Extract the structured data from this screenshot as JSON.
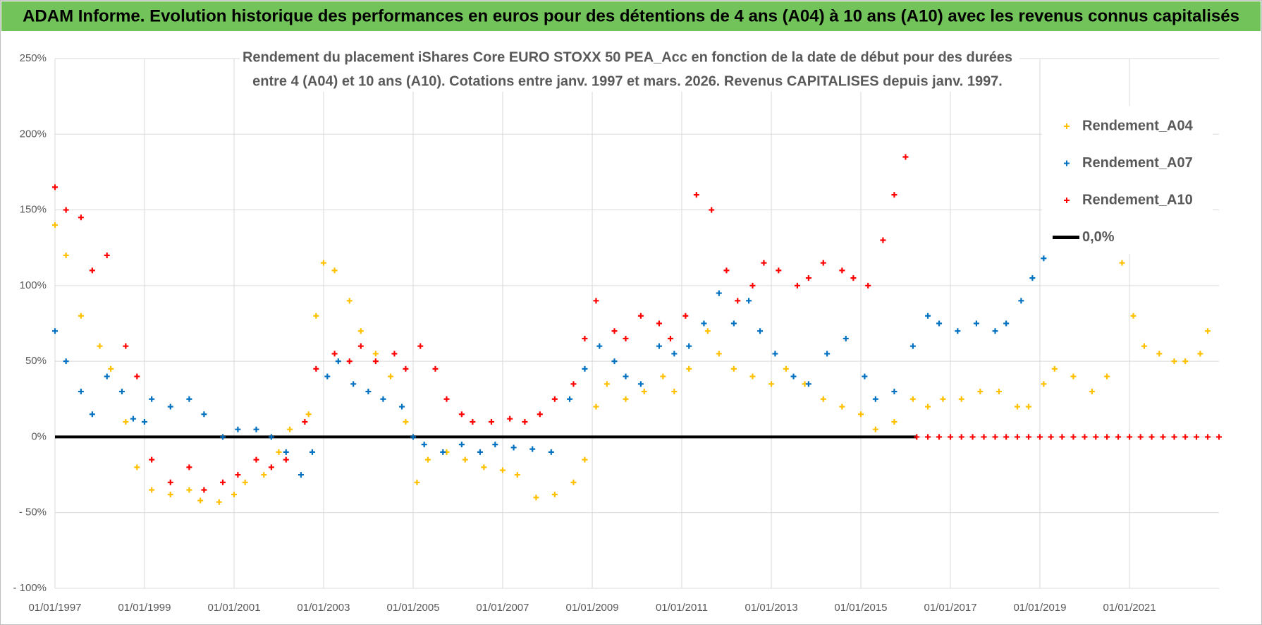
{
  "chart_data": {
    "type": "scatter",
    "header": "ADAM Informe. Evolution historique des performances en euros pour des détentions de 4 ans (A04) à 10 ans (A10) avec les revenus connus capitalisés",
    "title": [
      "Rendement du placement iShares Core EURO STOXX 50 PEA_Acc en fonction de la date de début pour des durées",
      "entre 4 (A04) et 10 ans (A10). Cotations entre janv. 1997 et mars. 2026. Revenus CAPITALISES depuis janv. 1997."
    ],
    "xlim": [
      "1997-01-01",
      "2023-01-01"
    ],
    "xticks": [
      {
        "value": "1997-01-01",
        "label": "01/01/1997"
      },
      {
        "value": "1999-01-01",
        "label": "01/01/1999"
      },
      {
        "value": "2001-01-01",
        "label": "01/01/2001"
      },
      {
        "value": "2003-01-01",
        "label": "01/01/2003"
      },
      {
        "value": "2005-01-01",
        "label": "01/01/2005"
      },
      {
        "value": "2007-01-01",
        "label": "01/01/2007"
      },
      {
        "value": "2009-01-01",
        "label": "01/01/2009"
      },
      {
        "value": "2011-01-01",
        "label": "01/01/2011"
      },
      {
        "value": "2013-01-01",
        "label": "01/01/2013"
      },
      {
        "value": "2015-01-01",
        "label": "01/01/2015"
      },
      {
        "value": "2017-01-01",
        "label": "01/01/2017"
      },
      {
        "value": "2019-01-01",
        "label": "01/01/2019"
      },
      {
        "value": "2021-01-01",
        "label": "01/01/2021"
      }
    ],
    "ylim": [
      -100,
      250
    ],
    "yticks": [
      {
        "value": -100,
        "label": "- 100%"
      },
      {
        "value": -50,
        "label": "- 50%"
      },
      {
        "value": 0,
        "label": "0%"
      },
      {
        "value": 50,
        "label": "50%"
      },
      {
        "value": 100,
        "label": "100%"
      },
      {
        "value": 150,
        "label": "150%"
      },
      {
        "value": 200,
        "label": "200%"
      },
      {
        "value": 250,
        "label": "250%"
      }
    ],
    "grid": true,
    "legend": "right",
    "series": [
      {
        "name": "0,0%",
        "color": "#000000",
        "type": "line",
        "x": [
          "1997-01-01",
          "2016-04-01"
        ],
        "values": [
          0,
          0
        ]
      },
      {
        "name": "Rendement_A04",
        "color": "#ffc000",
        "x": [
          "1997-01-01",
          "1997-04-01",
          "1997-08-01",
          "1998-01-01",
          "1998-04-01",
          "1998-08-01",
          "1998-11-01",
          "1999-03-01",
          "1999-08-01",
          "2000-01-01",
          "2000-04-01",
          "2000-09-01",
          "2001-01-01",
          "2001-04-01",
          "2001-09-01",
          "2002-01-01",
          "2002-04-01",
          "2002-09-01",
          "2002-11-01",
          "2003-01-01",
          "2003-04-01",
          "2003-08-01",
          "2003-11-01",
          "2004-03-01",
          "2004-07-01",
          "2004-11-01",
          "2005-02-01",
          "2005-05-01",
          "2005-10-01",
          "2006-03-01",
          "2006-08-01",
          "2007-01-01",
          "2007-05-01",
          "2007-10-01",
          "2008-03-01",
          "2008-08-01",
          "2008-11-01",
          "2009-02-01",
          "2009-05-01",
          "2009-10-01",
          "2010-03-01",
          "2010-08-01",
          "2010-11-01",
          "2011-03-01",
          "2011-08-01",
          "2011-11-01",
          "2012-03-01",
          "2012-08-01",
          "2013-01-01",
          "2013-05-01",
          "2013-10-01",
          "2014-03-01",
          "2014-08-01",
          "2015-01-01",
          "2015-05-01",
          "2015-10-01",
          "2016-03-01",
          "2016-07-01",
          "2016-11-01",
          "2017-04-01",
          "2017-09-01",
          "2018-02-01",
          "2018-07-01",
          "2018-10-01",
          "2019-02-01",
          "2019-05-01",
          "2019-10-01",
          "2020-03-01",
          "2020-07-01",
          "2020-11-01",
          "2021-02-01",
          "2021-05-01",
          "2021-09-01",
          "2022-01-01",
          "2022-04-01",
          "2022-08-01",
          "2022-10-01"
        ],
        "values": [
          140,
          120,
          80,
          60,
          45,
          10,
          -20,
          -35,
          -38,
          -35,
          -42,
          -43,
          -38,
          -30,
          -25,
          -10,
          5,
          15,
          80,
          115,
          110,
          90,
          70,
          55,
          40,
          10,
          -30,
          -15,
          -10,
          -15,
          -20,
          -22,
          -25,
          -40,
          -38,
          -30,
          -15,
          20,
          35,
          25,
          30,
          40,
          30,
          45,
          70,
          55,
          45,
          40,
          35,
          45,
          35,
          25,
          20,
          15,
          5,
          10,
          25,
          20,
          25,
          25,
          30,
          30,
          20,
          20,
          35,
          45,
          40,
          30,
          40,
          115,
          80,
          60,
          55,
          50,
          50,
          55,
          70
        ]
      },
      {
        "name": "Rendement_A07",
        "color": "#0070c0",
        "x": [
          "1997-01-01",
          "1997-04-01",
          "1997-08-01",
          "1997-11-01",
          "1998-03-01",
          "1998-07-01",
          "1998-10-01",
          "1999-01-01",
          "1999-03-01",
          "1999-08-01",
          "2000-01-01",
          "2000-05-01",
          "2000-10-01",
          "2001-02-01",
          "2001-07-01",
          "2001-11-01",
          "2002-03-01",
          "2002-07-01",
          "2002-10-01",
          "2003-02-01",
          "2003-05-01",
          "2003-09-01",
          "2004-01-01",
          "2004-05-01",
          "2004-10-01",
          "2005-01-01",
          "2005-04-01",
          "2005-09-01",
          "2006-02-01",
          "2006-07-01",
          "2006-11-01",
          "2007-04-01",
          "2007-09-01",
          "2008-02-01",
          "2008-07-01",
          "2008-11-01",
          "2009-03-01",
          "2009-07-01",
          "2009-10-01",
          "2010-02-01",
          "2010-07-01",
          "2010-11-01",
          "2011-03-01",
          "2011-07-01",
          "2011-11-01",
          "2012-03-01",
          "2012-07-01",
          "2012-10-01",
          "2013-02-01",
          "2013-07-01",
          "2013-11-01",
          "2014-04-01",
          "2014-09-01",
          "2015-02-01",
          "2015-05-01",
          "2015-10-01",
          "2016-03-01",
          "2016-07-01",
          "2016-10-01",
          "2017-03-01",
          "2017-08-01",
          "2018-01-01",
          "2018-04-01",
          "2018-08-01",
          "2018-11-01",
          "2019-02-01"
        ],
        "values": [
          70,
          50,
          30,
          15,
          40,
          30,
          12,
          10,
          25,
          20,
          25,
          15,
          0,
          5,
          5,
          0,
          -10,
          -25,
          -10,
          40,
          50,
          35,
          30,
          25,
          20,
          0,
          -5,
          -10,
          -5,
          -10,
          -5,
          -7,
          -8,
          -10,
          25,
          45,
          60,
          50,
          40,
          35,
          60,
          55,
          60,
          75,
          95,
          75,
          90,
          70,
          55,
          40,
          35,
          55,
          65,
          40,
          25,
          30,
          60,
          80,
          75,
          70,
          75,
          70,
          75,
          90,
          105,
          118
        ]
      },
      {
        "name": "Rendement_A10",
        "color": "#ff0000",
        "x": [
          "1997-01-01",
          "1997-04-01",
          "1997-08-01",
          "1997-11-01",
          "1998-03-01",
          "1998-08-01",
          "1998-11-01",
          "1999-03-01",
          "1999-08-01",
          "2000-01-01",
          "2000-05-01",
          "2000-10-01",
          "2001-02-01",
          "2001-07-01",
          "2001-11-01",
          "2002-03-01",
          "2002-08-01",
          "2002-11-01",
          "2003-04-01",
          "2003-08-01",
          "2003-11-01",
          "2004-03-01",
          "2004-08-01",
          "2004-11-01",
          "2005-03-01",
          "2005-07-01",
          "2005-10-01",
          "2006-02-01",
          "2006-05-01",
          "2006-10-01",
          "2007-03-01",
          "2007-07-01",
          "2007-11-01",
          "2008-03-01",
          "2008-08-01",
          "2008-11-01",
          "2009-02-01",
          "2009-07-01",
          "2009-10-01",
          "2010-02-01",
          "2010-07-01",
          "2010-10-01",
          "2011-02-01",
          "2011-05-01",
          "2011-09-01",
          "2012-01-01",
          "2012-04-01",
          "2012-08-01",
          "2012-11-01",
          "2013-03-01",
          "2013-08-01",
          "2013-11-01",
          "2014-03-01",
          "2014-08-01",
          "2014-11-01",
          "2015-03-01",
          "2015-07-01",
          "2015-10-01",
          "2016-01-01",
          "2016-04-01",
          "2016-07-01",
          "2016-10-01",
          "2017-01-01",
          "2017-04-01",
          "2017-07-01",
          "2017-10-01",
          "2018-01-01",
          "2018-04-01",
          "2018-07-01",
          "2018-10-01",
          "2019-01-01",
          "2019-04-01",
          "2019-07-01",
          "2019-10-01",
          "2020-01-01",
          "2020-04-01",
          "2020-07-01",
          "2020-10-01",
          "2021-01-01",
          "2021-04-01",
          "2021-07-01",
          "2021-10-01",
          "2022-01-01",
          "2022-04-01",
          "2022-07-01",
          "2022-10-01",
          "2023-01-01"
        ],
        "values": [
          165,
          150,
          145,
          110,
          120,
          60,
          40,
          -15,
          -30,
          -20,
          -35,
          -30,
          -25,
          -15,
          -20,
          -15,
          10,
          45,
          55,
          50,
          60,
          50,
          55,
          45,
          60,
          45,
          25,
          15,
          10,
          10,
          12,
          10,
          15,
          25,
          35,
          65,
          90,
          70,
          65,
          80,
          75,
          65,
          80,
          160,
          150,
          110,
          90,
          100,
          115,
          110,
          100,
          105,
          115,
          110,
          105,
          100,
          130,
          160,
          185,
          0,
          0,
          0,
          0,
          0,
          0,
          0,
          0,
          0,
          0,
          0,
          0,
          0,
          0,
          0,
          0,
          0,
          0,
          0,
          0,
          0,
          0,
          0,
          0,
          0,
          0,
          0,
          0
        ]
      }
    ]
  }
}
